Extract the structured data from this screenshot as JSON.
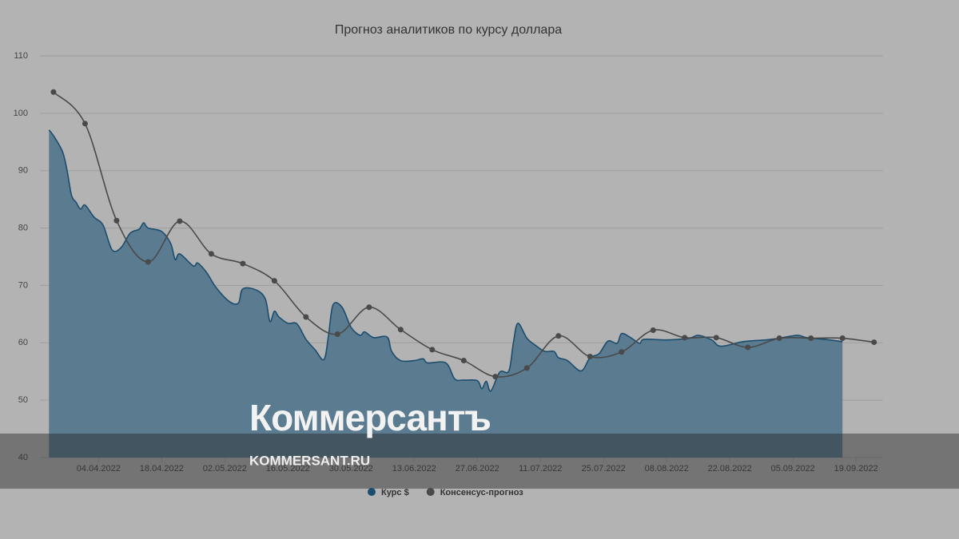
{
  "chart_data": {
    "type": "area-line",
    "title": "Прогноз аналитиков по курсу доллара",
    "series": [
      {
        "name": "Курс $",
        "color": "#1b4d6e",
        "fill": "#5a7b90",
        "kind": "area",
        "x": [
          "2022-03-24",
          "2022-03-25",
          "2022-03-27",
          "2022-03-28",
          "2022-03-29",
          "2022-03-30",
          "2022-03-31",
          "2022-04-01",
          "2022-04-03",
          "2022-04-05",
          "2022-04-07",
          "2022-04-09",
          "2022-04-11",
          "2022-04-13",
          "2022-04-14",
          "2022-04-15",
          "2022-04-18",
          "2022-04-20",
          "2022-04-21",
          "2022-04-22",
          "2022-04-25",
          "2022-04-26",
          "2022-04-28",
          "2022-04-30",
          "2022-05-03",
          "2022-05-05",
          "2022-05-06",
          "2022-05-09",
          "2022-05-11",
          "2022-05-12",
          "2022-05-13",
          "2022-05-14",
          "2022-05-16",
          "2022-05-18",
          "2022-05-20",
          "2022-05-22",
          "2022-05-24",
          "2022-05-25",
          "2022-05-26",
          "2022-05-28",
          "2022-05-30",
          "2022-06-01",
          "2022-06-02",
          "2022-06-04",
          "2022-06-07",
          "2022-06-08",
          "2022-06-10",
          "2022-06-13",
          "2022-06-15",
          "2022-06-16",
          "2022-06-20",
          "2022-06-22",
          "2022-06-24",
          "2022-06-27",
          "2022-06-28",
          "2022-06-29",
          "2022-06-30",
          "2022-07-02",
          "2022-07-04",
          "2022-07-05",
          "2022-07-06",
          "2022-07-08",
          "2022-07-10",
          "2022-07-12",
          "2022-07-14",
          "2022-07-15",
          "2022-07-17",
          "2022-07-20",
          "2022-07-22",
          "2022-07-24",
          "2022-07-26",
          "2022-07-28",
          "2022-07-29",
          "2022-07-31",
          "2022-08-02",
          "2022-08-03",
          "2022-08-08",
          "2022-08-13",
          "2022-08-15",
          "2022-08-18",
          "2022-08-20",
          "2022-08-25",
          "2022-08-30",
          "2022-09-02",
          "2022-09-06",
          "2022-09-08",
          "2022-09-12",
          "2022-09-16"
        ],
        "values": [
          97.1,
          96.1,
          93.3,
          90.1,
          85.7,
          84.5,
          83.3,
          84,
          81.9,
          80.5,
          76.2,
          76.6,
          79.1,
          79.8,
          80.9,
          80,
          79.4,
          77.3,
          74.5,
          75.5,
          73.4,
          73.9,
          72.2,
          69.7,
          67.2,
          66.9,
          69.4,
          69.2,
          67.6,
          63.7,
          65.5,
          64.5,
          63.4,
          63.3,
          60.6,
          58.8,
          57.1,
          61.3,
          66.6,
          66.2,
          62.7,
          61.3,
          61.9,
          60.9,
          61,
          58.5,
          56.9,
          56.9,
          57.2,
          56.5,
          56.5,
          53.7,
          53.5,
          53.4,
          52,
          53.3,
          51.6,
          54.9,
          55.1,
          60,
          63.4,
          60.8,
          59.5,
          58.5,
          58.5,
          57.4,
          56.9,
          55.1,
          57.4,
          58.1,
          60.3,
          59.9,
          61.6,
          60.9,
          59.9,
          60.6,
          60.5,
          60.8,
          61.3,
          60.5,
          59.4,
          60.2,
          60.5,
          60.8,
          61.3,
          60.9,
          60.6,
          60.2
        ]
      },
      {
        "name": "Консенсус-прогноз",
        "color": "#4a4a4a",
        "kind": "line",
        "x": [
          "2022-03-25",
          "2022-04-01",
          "2022-04-08",
          "2022-04-15",
          "2022-04-22",
          "2022-04-29",
          "2022-05-06",
          "2022-05-13",
          "2022-05-20",
          "2022-05-27",
          "2022-06-03",
          "2022-06-10",
          "2022-06-17",
          "2022-06-24",
          "2022-07-01",
          "2022-07-08",
          "2022-07-15",
          "2022-07-22",
          "2022-07-29",
          "2022-08-05",
          "2022-08-12",
          "2022-08-19",
          "2022-08-26",
          "2022-09-02",
          "2022-09-09",
          "2022-09-16",
          "2022-09-23"
        ],
        "values": [
          103.7,
          98.2,
          81.3,
          74.1,
          81.2,
          75.5,
          73.8,
          70.8,
          64.5,
          61.5,
          66.2,
          62.3,
          58.8,
          56.9,
          54.1,
          55.6,
          61.2,
          57.6,
          58.4,
          62.2,
          60.9,
          60.9,
          59.2,
          60.8,
          60.8,
          60.8,
          60.1
        ]
      }
    ],
    "xlim": [
      "2022-03-22",
      "2022-09-25"
    ],
    "xticks": [
      {
        "value": "2022-04-04",
        "label": "04.04.2022"
      },
      {
        "value": "2022-04-18",
        "label": "18.04.2022"
      },
      {
        "value": "2022-05-02",
        "label": "02.05.2022"
      },
      {
        "value": "2022-05-16",
        "label": "16.05.2022"
      },
      {
        "value": "2022-05-30",
        "label": "30.05.2022"
      },
      {
        "value": "2022-06-13",
        "label": "13.06.2022"
      },
      {
        "value": "2022-06-27",
        "label": "27.06.2022"
      },
      {
        "value": "2022-07-11",
        "label": "11.07.2022"
      },
      {
        "value": "2022-07-25",
        "label": "25.07.2022"
      },
      {
        "value": "2022-08-08",
        "label": "08.08.2022"
      },
      {
        "value": "2022-08-22",
        "label": "22.08.2022"
      },
      {
        "value": "2022-09-05",
        "label": "05.09.2022"
      },
      {
        "value": "2022-09-19",
        "label": "19.09.2022"
      }
    ],
    "ylim": [
      40,
      110
    ],
    "yticks": [
      40,
      50,
      60,
      70,
      80,
      90,
      100,
      110
    ],
    "grid": true,
    "legend": "bottom"
  },
  "watermark": {
    "logo": "Коммерсантъ",
    "url": "KOMMERSANT.RU"
  }
}
